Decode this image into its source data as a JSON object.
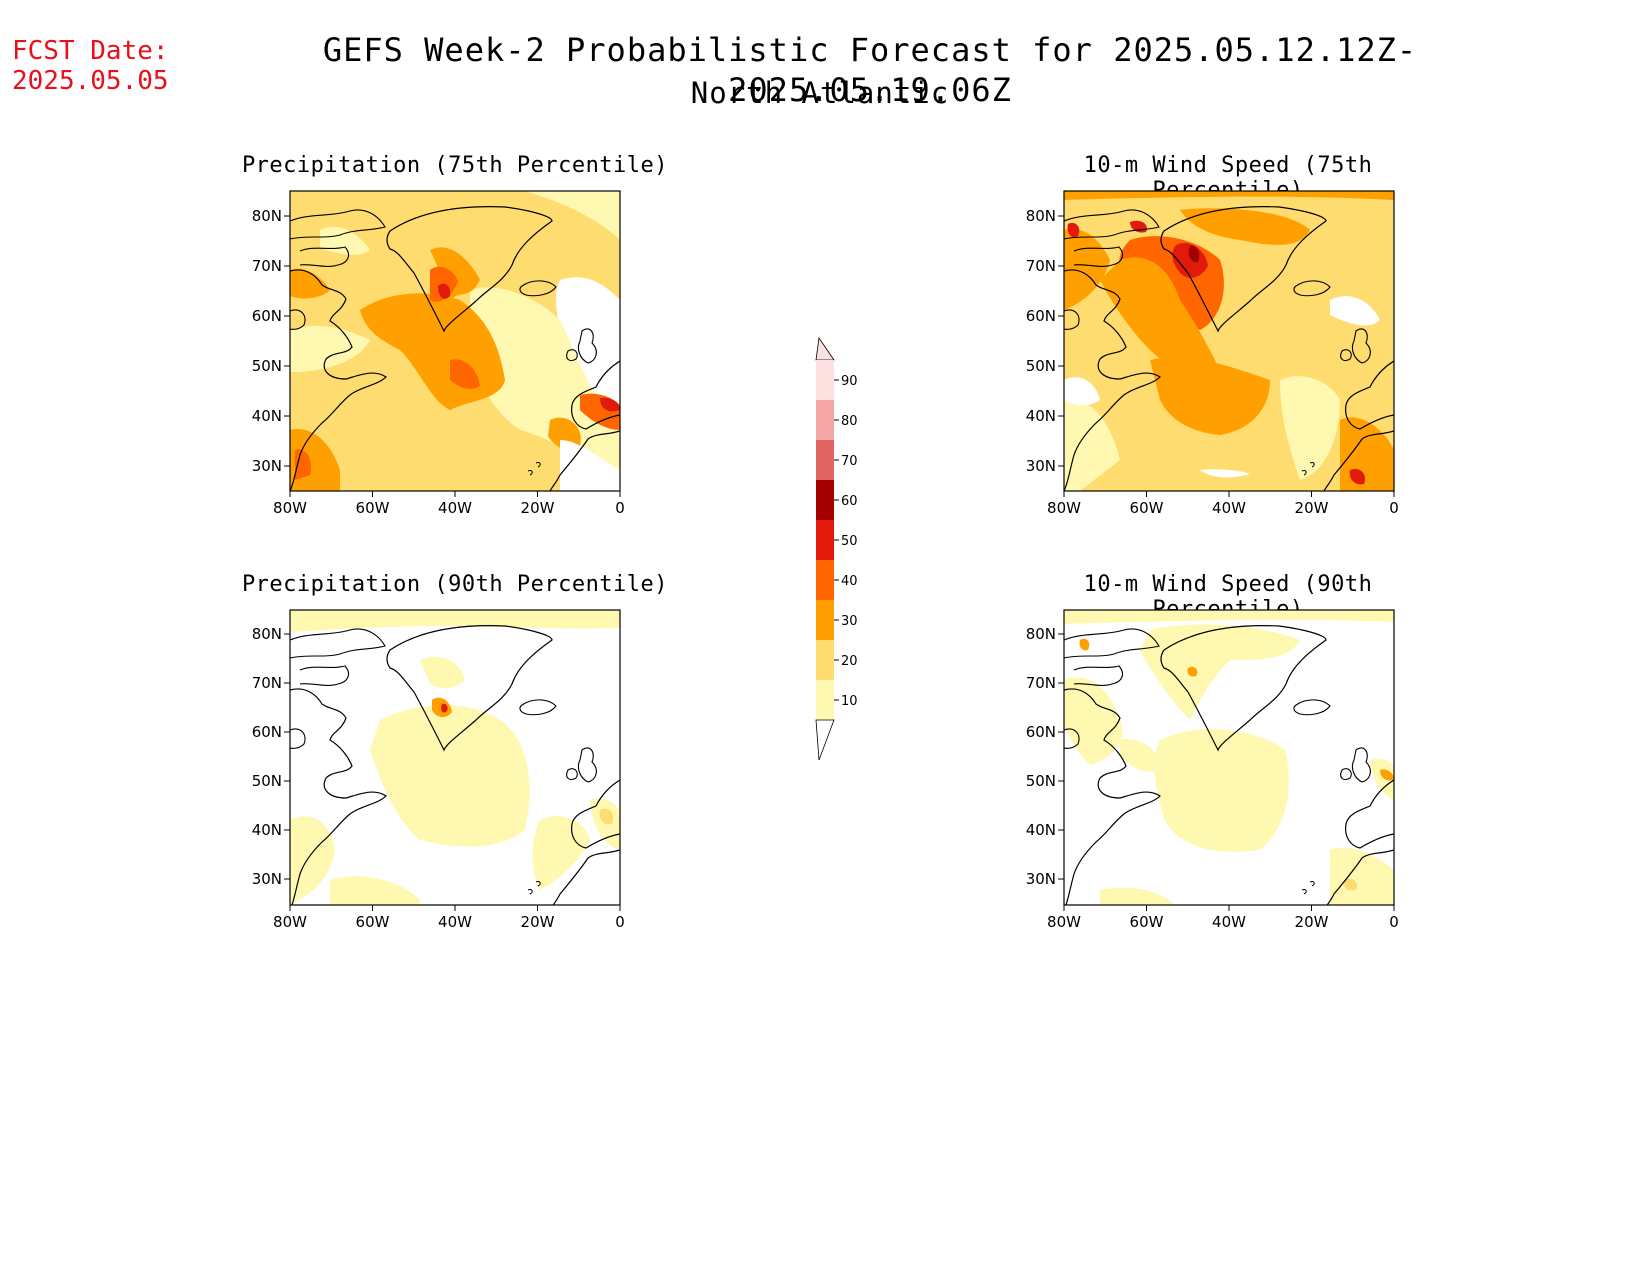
{
  "header": {
    "fcst_label": "FCST Date:",
    "fcst_date": "2025.05.05",
    "title": "GEFS Week-2 Probabilistic Forecast for 2025.05.12.12Z-2025.05.19.06Z",
    "subtitle": "North Atlantic"
  },
  "panels": [
    {
      "title": "Precipitation (75th Percentile)",
      "id": "precip-75"
    },
    {
      "title": "10-m Wind Speed (75th Percentile)",
      "id": "wind-75"
    },
    {
      "title": "Precipitation (90th Percentile)",
      "id": "precip-90"
    },
    {
      "title": "10-m Wind Speed (90th Percentile)",
      "id": "wind-90"
    }
  ],
  "axes": {
    "lon_ticks": [
      "80W",
      "60W",
      "40W",
      "20W",
      "0"
    ],
    "lat_ticks": [
      "80N",
      "70N",
      "60N",
      "50N",
      "40N",
      "30N"
    ]
  },
  "colorbar": {
    "levels": [
      "90",
      "80",
      "70",
      "60",
      "50",
      "40",
      "30",
      "20",
      "10"
    ],
    "colors": [
      "#fde0e0",
      "#f4a6a6",
      "#e06666",
      "#a30000",
      "#e21a0c",
      "#ff6600",
      "#ffa000",
      "#ffdc70",
      "#fff8b0"
    ]
  }
}
